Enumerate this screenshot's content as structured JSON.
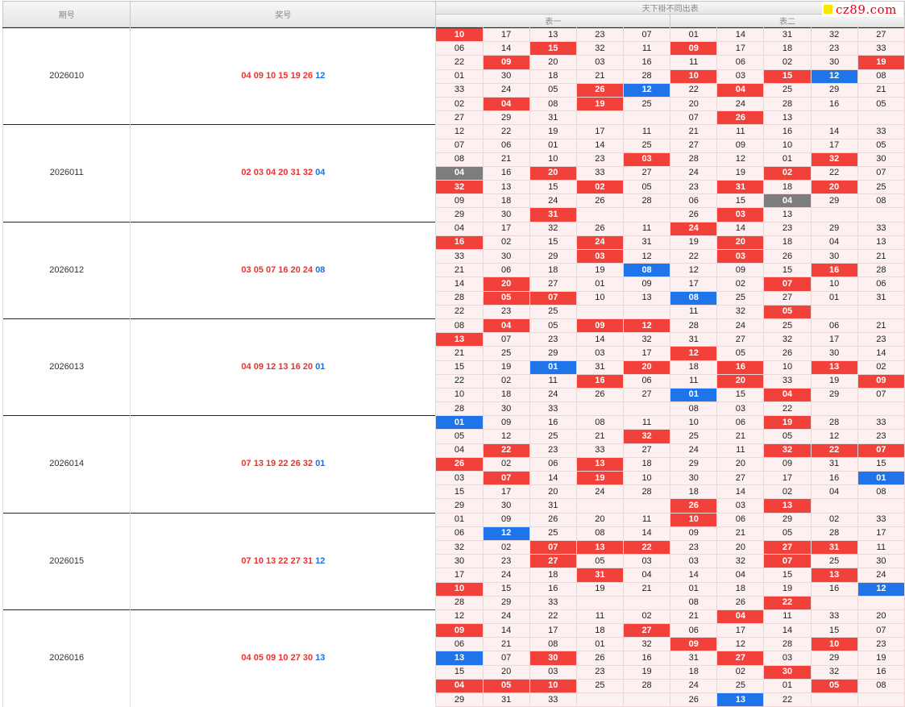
{
  "header": {
    "issue": "期号",
    "numbers": "奖号",
    "group": "天下褂不同出表",
    "t1": "表一",
    "t2": "表二"
  },
  "logo": "cz89.com",
  "colors": {
    "red": "#f2413a",
    "blue": "#1e74e8",
    "gray": "#7d7d7d"
  },
  "rows": [
    {
      "issue": "2026010",
      "red": "04 09 10 15 19 26",
      "blue": "12",
      "t1": [
        [
          "10r",
          "17",
          "13",
          "23",
          "07"
        ],
        [
          "06",
          "14",
          "15r",
          "32",
          "11"
        ],
        [
          "22",
          "09r",
          "20",
          "03",
          "16"
        ],
        [
          "01",
          "30",
          "18",
          "21",
          "28"
        ],
        [
          "33",
          "24",
          "05",
          "26r",
          "12b"
        ],
        [
          "02",
          "04r",
          "08",
          "19r",
          "25"
        ],
        [
          "27",
          "29",
          "31",
          "",
          ""
        ]
      ],
      "t2": [
        [
          "01",
          "14",
          "31",
          "32",
          "27"
        ],
        [
          "09r",
          "17",
          "18",
          "23",
          "33"
        ],
        [
          "11",
          "06",
          "02",
          "30",
          "19r"
        ],
        [
          "10r",
          "03",
          "15r",
          "12b",
          "08"
        ],
        [
          "22",
          "04r",
          "25",
          "29",
          "21"
        ],
        [
          "20",
          "24",
          "28",
          "16",
          "05"
        ],
        [
          "07",
          "26r",
          "13",
          "",
          ""
        ]
      ]
    },
    {
      "issue": "2026011",
      "red": "02 03 04 20 31 32",
      "blue": "04",
      "t1": [
        [
          "12",
          "22",
          "19",
          "17",
          "11"
        ],
        [
          "07",
          "06",
          "01",
          "14",
          "25"
        ],
        [
          "08",
          "21",
          "10",
          "23",
          "03r"
        ],
        [
          "04g",
          "16",
          "20r",
          "33",
          "27"
        ],
        [
          "32r",
          "13",
          "15",
          "02r",
          "05"
        ],
        [
          "09",
          "18",
          "24",
          "26",
          "28"
        ],
        [
          "29",
          "30",
          "31r",
          "",
          ""
        ]
      ],
      "t2": [
        [
          "21",
          "11",
          "16",
          "14",
          "33"
        ],
        [
          "27",
          "09",
          "10",
          "17",
          "05"
        ],
        [
          "28",
          "12",
          "01",
          "32r",
          "30"
        ],
        [
          "24",
          "19",
          "02r",
          "22",
          "07"
        ],
        [
          "23",
          "31r",
          "18",
          "20r",
          "25"
        ],
        [
          "06",
          "15",
          "04g",
          "29",
          "08"
        ],
        [
          "26",
          "03r",
          "13",
          "",
          ""
        ]
      ]
    },
    {
      "issue": "2026012",
      "red": "03 05 07 16 20 24",
      "blue": "08",
      "t1": [
        [
          "04",
          "17",
          "32",
          "26",
          "11"
        ],
        [
          "16r",
          "02",
          "15",
          "24r",
          "31"
        ],
        [
          "33",
          "30",
          "29",
          "03r",
          "12"
        ],
        [
          "21",
          "06",
          "18",
          "19",
          "08b"
        ],
        [
          "14",
          "20r",
          "27",
          "01",
          "09"
        ],
        [
          "28",
          "05r",
          "07r",
          "10",
          "13"
        ],
        [
          "22",
          "23",
          "25",
          "",
          ""
        ]
      ],
      "t2": [
        [
          "24r",
          "14",
          "23",
          "29",
          "33"
        ],
        [
          "19",
          "20r",
          "18",
          "04",
          "13"
        ],
        [
          "22",
          "03r",
          "26",
          "30",
          "21"
        ],
        [
          "12",
          "09",
          "15",
          "16r",
          "28"
        ],
        [
          "17",
          "02",
          "07r",
          "10",
          "06"
        ],
        [
          "08b",
          "25",
          "27",
          "01",
          "31"
        ],
        [
          "11",
          "32",
          "05r",
          "",
          ""
        ]
      ]
    },
    {
      "issue": "2026013",
      "red": "04 09 12 13 16 20",
      "blue": "01",
      "t1": [
        [
          "08",
          "04r",
          "05",
          "09r",
          "12r"
        ],
        [
          "13r",
          "07",
          "23",
          "14",
          "32"
        ],
        [
          "21",
          "25",
          "29",
          "03",
          "17"
        ],
        [
          "15",
          "19",
          "01b",
          "31",
          "20r"
        ],
        [
          "22",
          "02",
          "11",
          "16r",
          "06"
        ],
        [
          "10",
          "18",
          "24",
          "26",
          "27"
        ],
        [
          "28",
          "30",
          "33",
          "",
          ""
        ]
      ],
      "t2": [
        [
          "28",
          "24",
          "25",
          "06",
          "21"
        ],
        [
          "31",
          "27",
          "32",
          "17",
          "23"
        ],
        [
          "12r",
          "05",
          "26",
          "30",
          "14"
        ],
        [
          "18",
          "16r",
          "10",
          "13r",
          "02"
        ],
        [
          "11",
          "20r",
          "33",
          "19",
          "09r"
        ],
        [
          "01b",
          "15",
          "04r",
          "29",
          "07"
        ],
        [
          "08",
          "03",
          "22",
          "",
          ""
        ]
      ]
    },
    {
      "issue": "2026014",
      "red": "07 13 19 22 26 32",
      "blue": "01",
      "t1": [
        [
          "01b",
          "09",
          "16",
          "08",
          "11"
        ],
        [
          "05",
          "12",
          "25",
          "21",
          "32r"
        ],
        [
          "04",
          "22r",
          "23",
          "33",
          "27"
        ],
        [
          "26r",
          "02",
          "06",
          "13r",
          "18"
        ],
        [
          "03",
          "07r",
          "14",
          "19r",
          "10"
        ],
        [
          "15",
          "17",
          "20",
          "24",
          "28"
        ],
        [
          "29",
          "30",
          "31",
          "",
          ""
        ]
      ],
      "t2": [
        [
          "10",
          "06",
          "19r",
          "28",
          "33"
        ],
        [
          "25",
          "21",
          "05",
          "12",
          "23"
        ],
        [
          "24",
          "11",
          "32r",
          "22r",
          "07r"
        ],
        [
          "29",
          "20",
          "09",
          "31",
          "15"
        ],
        [
          "30",
          "27",
          "17",
          "16",
          "01b"
        ],
        [
          "18",
          "14",
          "02",
          "04",
          "08"
        ],
        [
          "26r",
          "03",
          "13r",
          "",
          ""
        ]
      ]
    },
    {
      "issue": "2026015",
      "red": "07 10 13 22 27 31",
      "blue": "12",
      "t1": [
        [
          "01",
          "09",
          "26",
          "20",
          "11"
        ],
        [
          "06",
          "12b",
          "25",
          "08",
          "14"
        ],
        [
          "32",
          "02",
          "07r",
          "13r",
          "22r"
        ],
        [
          "30",
          "23",
          "27r",
          "05",
          "03"
        ],
        [
          "17",
          "24",
          "18",
          "31r",
          "04"
        ],
        [
          "10r",
          "15",
          "16",
          "19",
          "21"
        ],
        [
          "28",
          "29",
          "33",
          "",
          ""
        ]
      ],
      "t2": [
        [
          "10r",
          "06",
          "29",
          "02",
          "33"
        ],
        [
          "09",
          "21",
          "05",
          "28",
          "17"
        ],
        [
          "23",
          "20",
          "27r",
          "31r",
          "11"
        ],
        [
          "03",
          "32",
          "07r",
          "25",
          "30"
        ],
        [
          "14",
          "04",
          "15",
          "13r",
          "24"
        ],
        [
          "01",
          "18",
          "19",
          "16",
          "12b"
        ],
        [
          "08",
          "26",
          "22r",
          "",
          ""
        ]
      ]
    },
    {
      "issue": "2026016",
      "red": "04 05 09 10 27 30",
      "blue": "13",
      "t1": [
        [
          "12",
          "24",
          "22",
          "11",
          "02"
        ],
        [
          "09r",
          "14",
          "17",
          "18",
          "27r"
        ],
        [
          "06",
          "21",
          "08",
          "01",
          "32"
        ],
        [
          "13b",
          "07",
          "30r",
          "26",
          "16"
        ],
        [
          "15",
          "20",
          "03",
          "23",
          "19"
        ],
        [
          "04r",
          "05r",
          "10r",
          "25",
          "28"
        ],
        [
          "29",
          "31",
          "33",
          "",
          ""
        ]
      ],
      "t2": [
        [
          "21",
          "04r",
          "11",
          "33",
          "20"
        ],
        [
          "06",
          "17",
          "14",
          "15",
          "07"
        ],
        [
          "09r",
          "12",
          "28",
          "10r",
          "23"
        ],
        [
          "31",
          "27r",
          "03",
          "29",
          "19"
        ],
        [
          "18",
          "02",
          "30r",
          "32",
          "16"
        ],
        [
          "24",
          "25",
          "01",
          "05r",
          "08"
        ],
        [
          "26",
          "13b",
          "22",
          "",
          ""
        ]
      ]
    }
  ]
}
